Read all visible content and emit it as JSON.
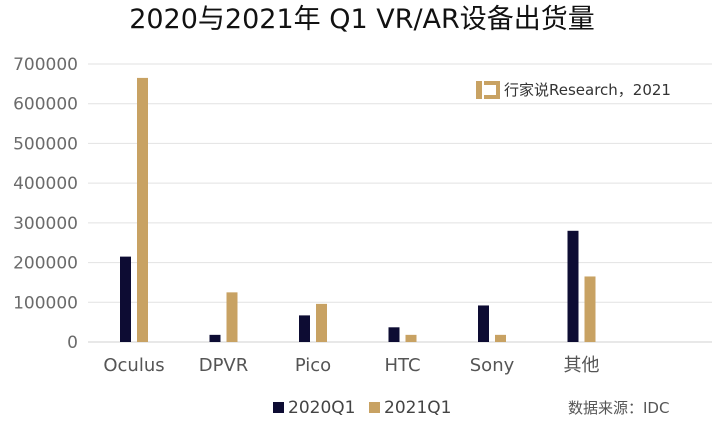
{
  "chart_data": {
    "type": "bar",
    "title": "2020与2021年 Q1 VR/AR设备出货量",
    "categories": [
      "Oculus",
      "DPVR",
      "Pico",
      "HTC",
      "Sony",
      "其他"
    ],
    "series": [
      {
        "name": "2020Q1",
        "color": "#0d0c33",
        "values": [
          215000,
          18000,
          67000,
          37000,
          92000,
          280000
        ]
      },
      {
        "name": "2021Q1",
        "color": "#c8a263",
        "values": [
          665000,
          125000,
          96000,
          18000,
          18000,
          165000
        ]
      }
    ],
    "yticks": [
      "0",
      "100000",
      "200000",
      "300000",
      "400000",
      "500000",
      "600000",
      "700000"
    ],
    "ylim": [
      0,
      700000
    ],
    "grid": true,
    "legend_position": "bottom"
  },
  "watermark": {
    "text": "行家说Research，2021",
    "logo_color": "#c8a263"
  },
  "source": {
    "text": "数据来源：IDC"
  }
}
